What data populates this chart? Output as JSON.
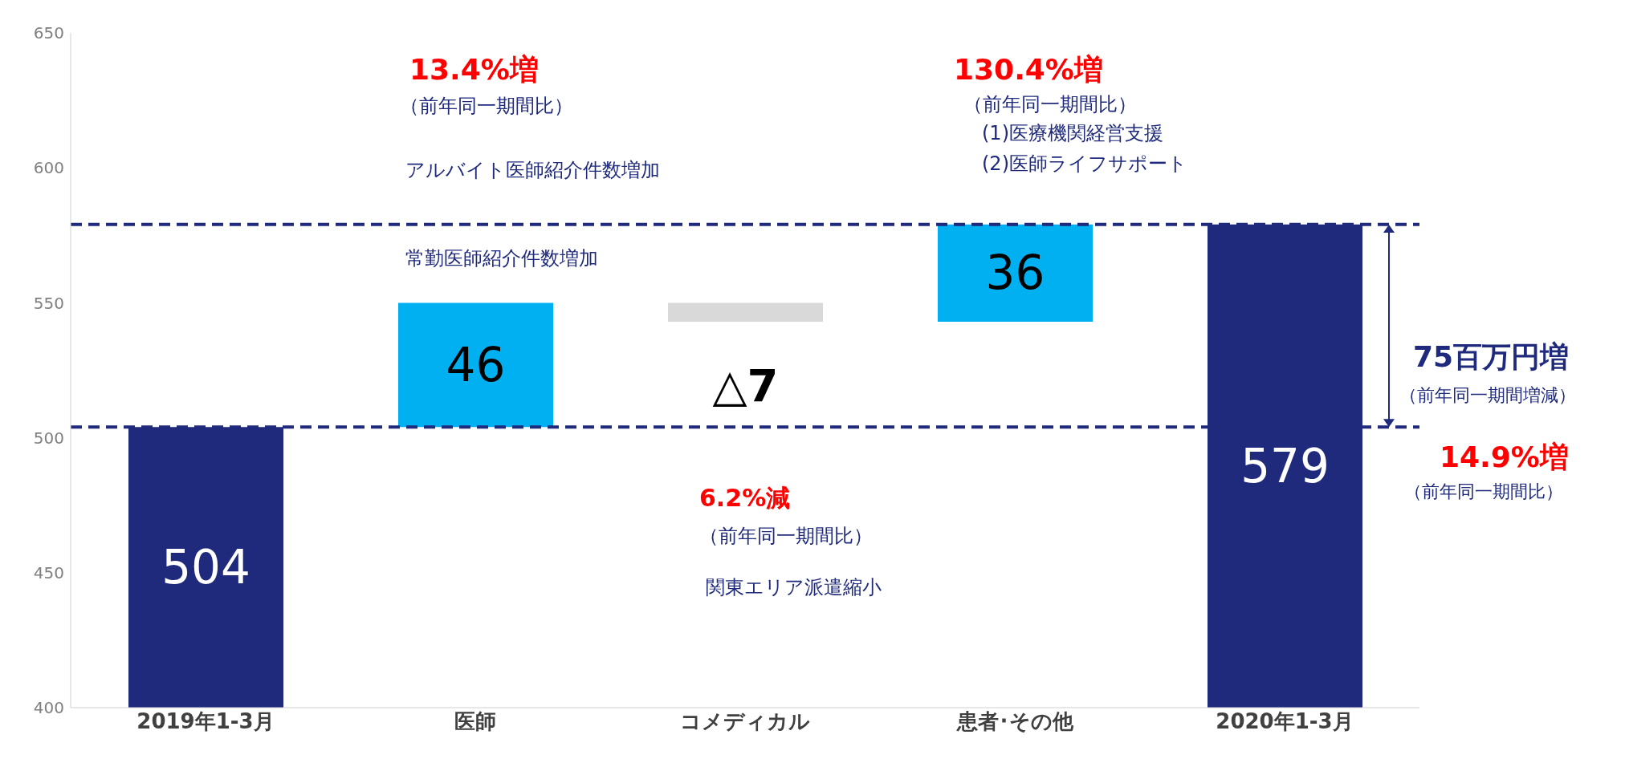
{
  "chart_data": {
    "type": "bar",
    "categories": [
      "2019年1-3月",
      "医師",
      "コメディカル",
      "患者･その他",
      "2020年1-3月"
    ],
    "values": [
      504,
      46,
      -7,
      36,
      579
    ],
    "base": [
      null,
      504,
      550,
      543,
      null
    ],
    "colors": [
      "#1f2a7c",
      "#00b0f0",
      "#d9d9d9",
      "#00b0f0",
      "#1f2a7c"
    ],
    "value_labels": [
      "504",
      "46",
      "△7",
      "36",
      "579"
    ],
    "ylim": [
      400,
      650
    ],
    "yticks": [
      400,
      450,
      500,
      550,
      600,
      650
    ],
    "ref_lines": [
      {
        "axis": "y",
        "value": 504,
        "color": "#1f2a7c",
        "line_style": "dashed"
      },
      {
        "axis": "y",
        "value": 579,
        "color": "#1f2a7c",
        "line_style": "dashed"
      }
    ],
    "annotations": [
      "13.4%増",
      "（前年同一期間比）",
      "アルバイト医師紹介件数増加",
      "常勤医師紹介件数増加",
      "6.2%減",
      "（前年同一期間比）",
      "関東エリア派遣縮小",
      "130.4%増",
      "（前年同一期間比）",
      "(1)医療機関経営支援",
      "(2)医師ライフサポート",
      "75百万円増",
      "（前年同一期間増減）",
      "14.9%増",
      "（前年同一期間比）"
    ]
  }
}
